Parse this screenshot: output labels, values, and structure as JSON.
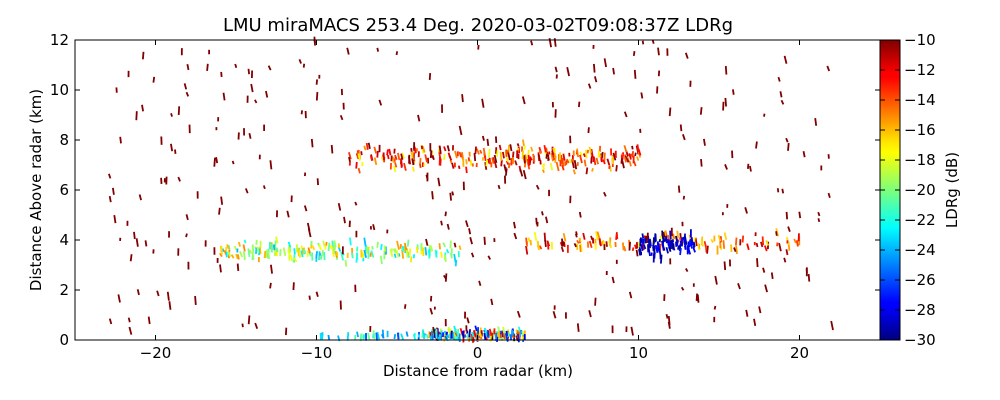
{
  "chart_data": {
    "type": "scatter",
    "title": "LMU miraMACS 253.4 Deg. 2020-03-02T09:08:37Z  LDRg",
    "xlabel": "Distance from radar (km)",
    "ylabel": "Distance Above radar  (km)",
    "xlim": [
      -25,
      25
    ],
    "ylim": [
      0,
      12
    ],
    "xticks": [
      -20,
      -10,
      0,
      10,
      20
    ],
    "xtick_labels": [
      "−20",
      "−10",
      "0",
      "10",
      "20"
    ],
    "yticks": [
      0,
      2,
      4,
      6,
      8,
      10,
      12
    ],
    "ytick_labels": [
      "0",
      "2",
      "4",
      "6",
      "8",
      "10",
      "12"
    ],
    "colorbar": {
      "label": "LDRg (dB)",
      "range": [
        -30,
        -10
      ],
      "ticks": [
        -10,
        -12,
        -14,
        -16,
        -18,
        -20,
        -22,
        -24,
        -26,
        -28,
        -30
      ],
      "tick_labels": [
        "−10",
        "−12",
        "−14",
        "−16",
        "−18",
        "−20",
        "−22",
        "−24",
        "−26",
        "−28",
        "−30"
      ],
      "colormap": "jet"
    },
    "grid": false,
    "features": [
      {
        "name": "upper-layer",
        "x_range": [
          -8,
          10
        ],
        "y_center": 7.3,
        "y_spread": 0.45,
        "count": 260,
        "ldr_range": [
          -18,
          -10
        ]
      },
      {
        "name": "mid-layer-west",
        "x_range": [
          -16,
          -1
        ],
        "y_center": 3.55,
        "y_spread": 0.35,
        "count": 190,
        "ldr_range": [
          -24,
          -15
        ]
      },
      {
        "name": "mid-layer-east",
        "x_range": [
          3,
          20
        ],
        "y_center": 3.9,
        "y_spread": 0.35,
        "count": 120,
        "ldr_range": [
          -18,
          -10
        ]
      },
      {
        "name": "depolarized-patch",
        "x_range": [
          10,
          13.5
        ],
        "y_center": 3.8,
        "y_spread": 0.4,
        "count": 90,
        "ldr_range": [
          -30,
          -27
        ]
      },
      {
        "name": "near-surface-clutter",
        "x_range": [
          -3,
          3
        ],
        "y_center": 0.2,
        "y_spread": 0.2,
        "count": 180,
        "ldr_range": [
          -30,
          -10
        ]
      },
      {
        "name": "surface-streak",
        "x_range": [
          -10,
          -1
        ],
        "y_center": 0.15,
        "y_spread": 0.1,
        "count": 40,
        "ldr_range": [
          -26,
          -20
        ]
      },
      {
        "name": "scattered-noise",
        "x_range": [
          -23,
          22
        ],
        "y_range": [
          0.3,
          12
        ],
        "count": 330,
        "ldr_range": [
          -10,
          -10
        ]
      }
    ]
  }
}
